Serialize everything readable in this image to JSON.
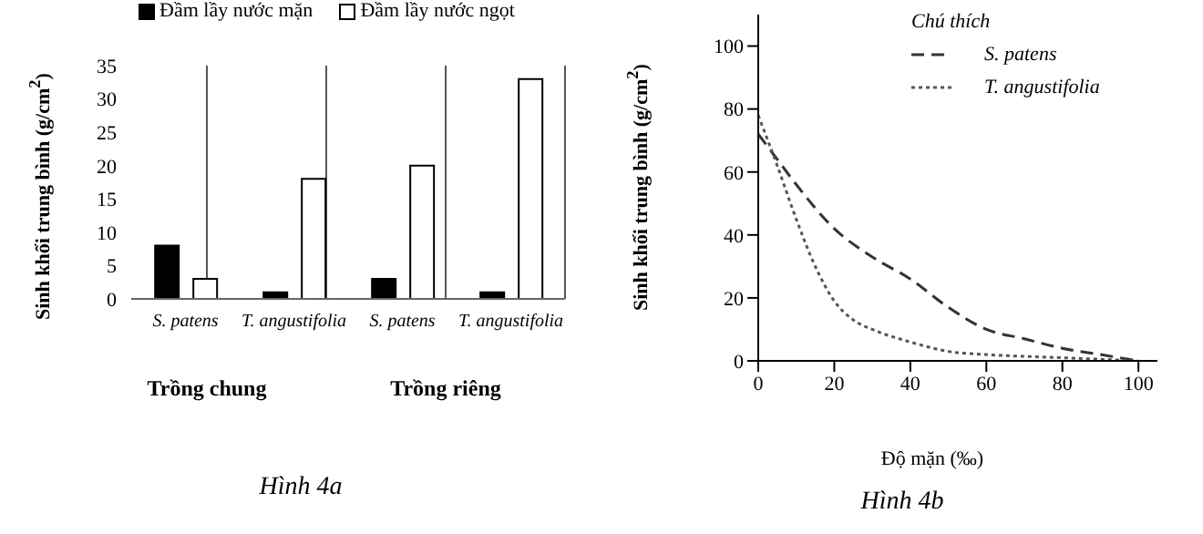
{
  "chart_data": [
    {
      "type": "bar",
      "title": "Hình 4a",
      "ylabel": "Sinh khối trung bình (g/cm$^{2}$)",
      "categories": [
        "S. patens",
        "T. angustifolia",
        "S. patens",
        "T. angustifolia"
      ],
      "series": [
        {
          "name": "Đầm lầy nước mặn",
          "color": "#000000",
          "values": [
            8,
            1,
            3,
            1
          ]
        },
        {
          "name": "Đầm lầy nước ngọt",
          "color": "#ffffff",
          "values": [
            3,
            18,
            20,
            33
          ]
        }
      ],
      "annotations": [
        "Trồng chung",
        "Trồng riêng"
      ],
      "ylim": [
        0,
        35
      ],
      "yticks": [
        0,
        5,
        10,
        15,
        20,
        25,
        30,
        35
      ],
      "grid": "x",
      "legend": "top"
    },
    {
      "type": "line",
      "title": "Hình 4b",
      "xlabel": "Độ mặn (‰)",
      "ylabel": "Sinh khối trung bình (g/cm$^{2}$)",
      "legend_title": "Chú thích",
      "series": [
        {
          "name": "S. patens",
          "color": "#333333",
          "line_style": "dashed",
          "x": [
            0,
            5,
            10,
            20,
            30,
            40,
            50,
            60,
            70,
            80,
            90,
            100
          ],
          "values": [
            72,
            64,
            56,
            42,
            33,
            26,
            17,
            10,
            7,
            4,
            2,
            0
          ]
        },
        {
          "name": "T. angustifolia",
          "color": "#555555",
          "line_style": "dotted",
          "x": [
            0,
            5,
            10,
            15,
            20,
            25,
            30,
            40,
            50,
            60,
            80,
            100
          ],
          "values": [
            78,
            62,
            45,
            30,
            19,
            13,
            10,
            6,
            3,
            2,
            1,
            0
          ]
        }
      ],
      "xlim": [
        0,
        105
      ],
      "xticks": [
        0,
        20,
        40,
        60,
        80,
        100
      ],
      "ylim": [
        0,
        110
      ],
      "yticks": [
        0,
        20,
        40,
        60,
        80,
        100
      ],
      "grid": false,
      "legend": "top right",
      "marker": "none"
    }
  ]
}
